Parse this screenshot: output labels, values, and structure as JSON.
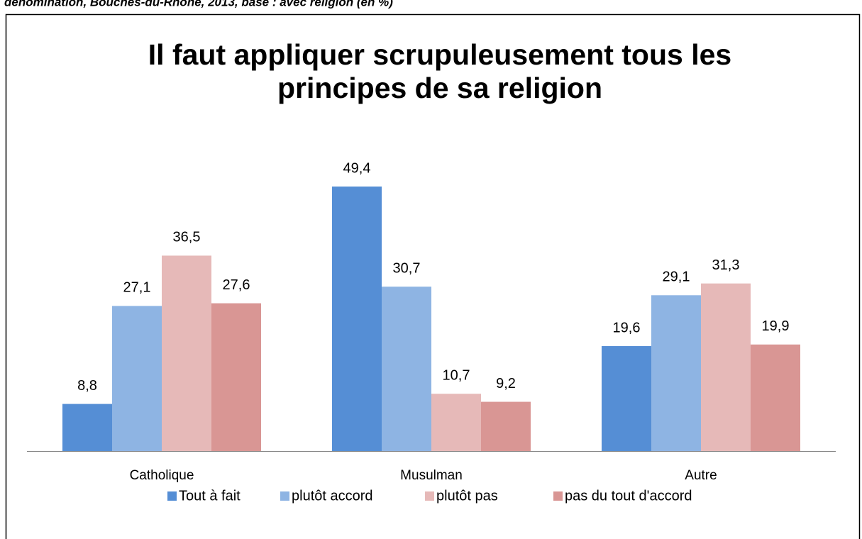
{
  "chart_data": {
    "type": "bar",
    "caption": "dénomination, Bouches-du-Rhône, 2013, base : avec religion (en %)",
    "title": [
      "Il faut appliquer scrupuleusement tous les",
      "principes de sa religion"
    ],
    "categories": [
      "Catholique",
      "Musulman",
      "Autre"
    ],
    "series": [
      {
        "name": "Tout à fait",
        "color": "#558ed5",
        "values": [
          8.8,
          49.4,
          19.6
        ],
        "value_labels": [
          "8,8",
          "49,4",
          "19,6"
        ]
      },
      {
        "name": "plutôt accord",
        "color": "#8eb4e3",
        "values": [
          27.1,
          30.7,
          29.1
        ],
        "value_labels": [
          "27,1",
          "30,7",
          "29,1"
        ]
      },
      {
        "name": "plutôt pas",
        "color": "#e6b9b8",
        "values": [
          36.5,
          10.7,
          31.3
        ],
        "value_labels": [
          "36,5",
          "10,7",
          "31,3"
        ]
      },
      {
        "name": "pas du tout d'accord",
        "color": "#d99694",
        "values": [
          27.6,
          9.2,
          19.9
        ],
        "value_labels": [
          "27,6",
          "9,2",
          "19,9"
        ]
      }
    ],
    "ylim": [
      0,
      60
    ],
    "legend": "bottom"
  }
}
